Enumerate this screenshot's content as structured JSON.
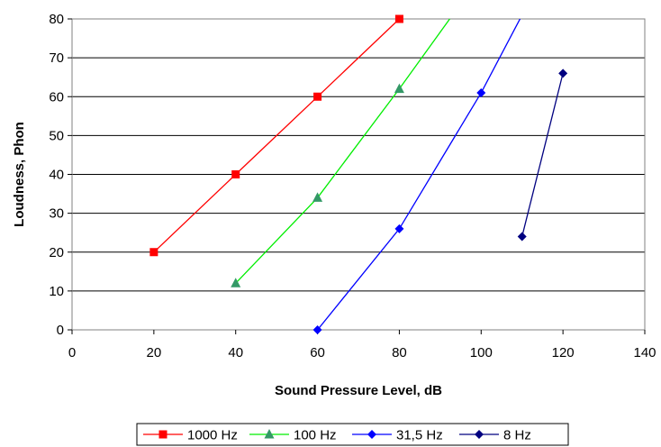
{
  "chart_data": {
    "type": "line",
    "title": "",
    "xlabel": "Sound Pressure Level, dB",
    "ylabel": "Loudness, Phon",
    "xlim": [
      0,
      140
    ],
    "ylim": [
      0,
      80
    ],
    "xticks": [
      0,
      20,
      40,
      60,
      80,
      100,
      120,
      140
    ],
    "yticks": [
      0,
      10,
      20,
      30,
      40,
      50,
      60,
      70,
      80
    ],
    "grid": "horizontal",
    "legend_position": "bottom",
    "series": [
      {
        "name": "1000 Hz",
        "color": "#ff0000",
        "marker": "square",
        "points": [
          [
            20,
            20
          ],
          [
            40,
            40
          ],
          [
            60,
            60
          ],
          [
            80,
            80
          ]
        ],
        "line_end": [
          82,
          82
        ]
      },
      {
        "name": "100 Hz",
        "color": "#00ee00",
        "marker_color": "#339966",
        "marker": "triangle",
        "points": [
          [
            40,
            12
          ],
          [
            60,
            34
          ],
          [
            80,
            62
          ]
        ],
        "line_end": [
          93,
          81
        ]
      },
      {
        "name": "31,5 Hz",
        "color": "#0000ff",
        "marker": "diamond",
        "points": [
          [
            60,
            0
          ],
          [
            80,
            26
          ],
          [
            100,
            61
          ]
        ],
        "line_end": [
          110,
          81
        ]
      },
      {
        "name": "8 Hz",
        "color": "#000080",
        "marker": "diamond",
        "points": [
          [
            110,
            24
          ],
          [
            120,
            66
          ]
        ]
      }
    ]
  }
}
